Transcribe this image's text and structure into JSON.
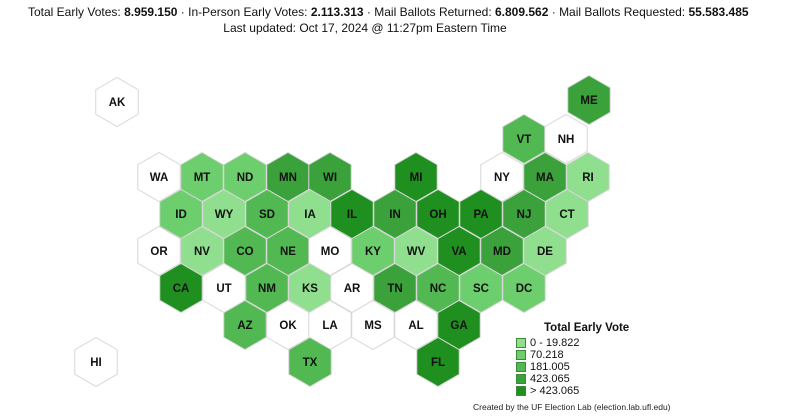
{
  "header": {
    "label_total": "Total Early Votes:",
    "value_total": "8.959.150",
    "label_inperson": "In-Person Early Votes:",
    "value_inperson": "2.113.313",
    "label_mail_returned": "Mail Ballots Returned:",
    "value_mail_returned": "6.809.562",
    "label_mail_requested": "Mail Ballots Requested:",
    "value_mail_requested": "55.583.485",
    "separator": " · ",
    "updated": "Last updated: Oct 17, 2024 @ 11:27pm Eastern Time"
  },
  "colors": {
    "none": "#ffffff",
    "c1": "#8fdf8f",
    "c2": "#6cce6c",
    "c3": "#52b952",
    "c4": "#3ba23b",
    "c5": "#1f8f1f",
    "stroke": "#d7d7d7"
  },
  "states": [
    {
      "abbr": "AK",
      "tier": "none"
    },
    {
      "abbr": "ME",
      "tier": "c4"
    },
    {
      "abbr": "VT",
      "tier": "c3"
    },
    {
      "abbr": "NH",
      "tier": "none"
    },
    {
      "abbr": "WA",
      "tier": "none"
    },
    {
      "abbr": "MT",
      "tier": "c2"
    },
    {
      "abbr": "ND",
      "tier": "c2"
    },
    {
      "abbr": "MN",
      "tier": "c4"
    },
    {
      "abbr": "WI",
      "tier": "c4"
    },
    {
      "abbr": "MI",
      "tier": "c5"
    },
    {
      "abbr": "NY",
      "tier": "none"
    },
    {
      "abbr": "MA",
      "tier": "c4"
    },
    {
      "abbr": "RI",
      "tier": "c1"
    },
    {
      "abbr": "ID",
      "tier": "c2"
    },
    {
      "abbr": "WY",
      "tier": "c1"
    },
    {
      "abbr": "SD",
      "tier": "c3"
    },
    {
      "abbr": "IA",
      "tier": "c1"
    },
    {
      "abbr": "IL",
      "tier": "c5"
    },
    {
      "abbr": "IN",
      "tier": "c4"
    },
    {
      "abbr": "OH",
      "tier": "c5"
    },
    {
      "abbr": "PA",
      "tier": "c5"
    },
    {
      "abbr": "NJ",
      "tier": "c4"
    },
    {
      "abbr": "CT",
      "tier": "c1"
    },
    {
      "abbr": "OR",
      "tier": "none"
    },
    {
      "abbr": "NV",
      "tier": "c1"
    },
    {
      "abbr": "CO",
      "tier": "c3"
    },
    {
      "abbr": "NE",
      "tier": "c3"
    },
    {
      "abbr": "MO",
      "tier": "none"
    },
    {
      "abbr": "KY",
      "tier": "c2"
    },
    {
      "abbr": "WV",
      "tier": "c1"
    },
    {
      "abbr": "VA",
      "tier": "c5"
    },
    {
      "abbr": "MD",
      "tier": "c4"
    },
    {
      "abbr": "DE",
      "tier": "c1"
    },
    {
      "abbr": "CA",
      "tier": "c5"
    },
    {
      "abbr": "UT",
      "tier": "none"
    },
    {
      "abbr": "NM",
      "tier": "c3"
    },
    {
      "abbr": "KS",
      "tier": "c1"
    },
    {
      "abbr": "AR",
      "tier": "none"
    },
    {
      "abbr": "TN",
      "tier": "c4"
    },
    {
      "abbr": "NC",
      "tier": "c3"
    },
    {
      "abbr": "SC",
      "tier": "c2"
    },
    {
      "abbr": "DC",
      "tier": "c2"
    },
    {
      "abbr": "AZ",
      "tier": "c3"
    },
    {
      "abbr": "OK",
      "tier": "none"
    },
    {
      "abbr": "LA",
      "tier": "none"
    },
    {
      "abbr": "MS",
      "tier": "none"
    },
    {
      "abbr": "AL",
      "tier": "none"
    },
    {
      "abbr": "GA",
      "tier": "c5"
    },
    {
      "abbr": "HI",
      "tier": "none"
    },
    {
      "abbr": "TX",
      "tier": "c3"
    },
    {
      "abbr": "FL",
      "tier": "c5"
    }
  ],
  "legend": {
    "title": "Total Early Vote",
    "items": [
      {
        "label": "0 - 19.822",
        "tier": "c1"
      },
      {
        "label": "70.218",
        "tier": "c2"
      },
      {
        "label": "181.005",
        "tier": "c3"
      },
      {
        "label": "423.065",
        "tier": "c4"
      },
      {
        "label": "> 423.065",
        "tier": "c5"
      }
    ]
  },
  "credit": "Created by the UF Election Lab (election.lab.ufl.edu)"
}
